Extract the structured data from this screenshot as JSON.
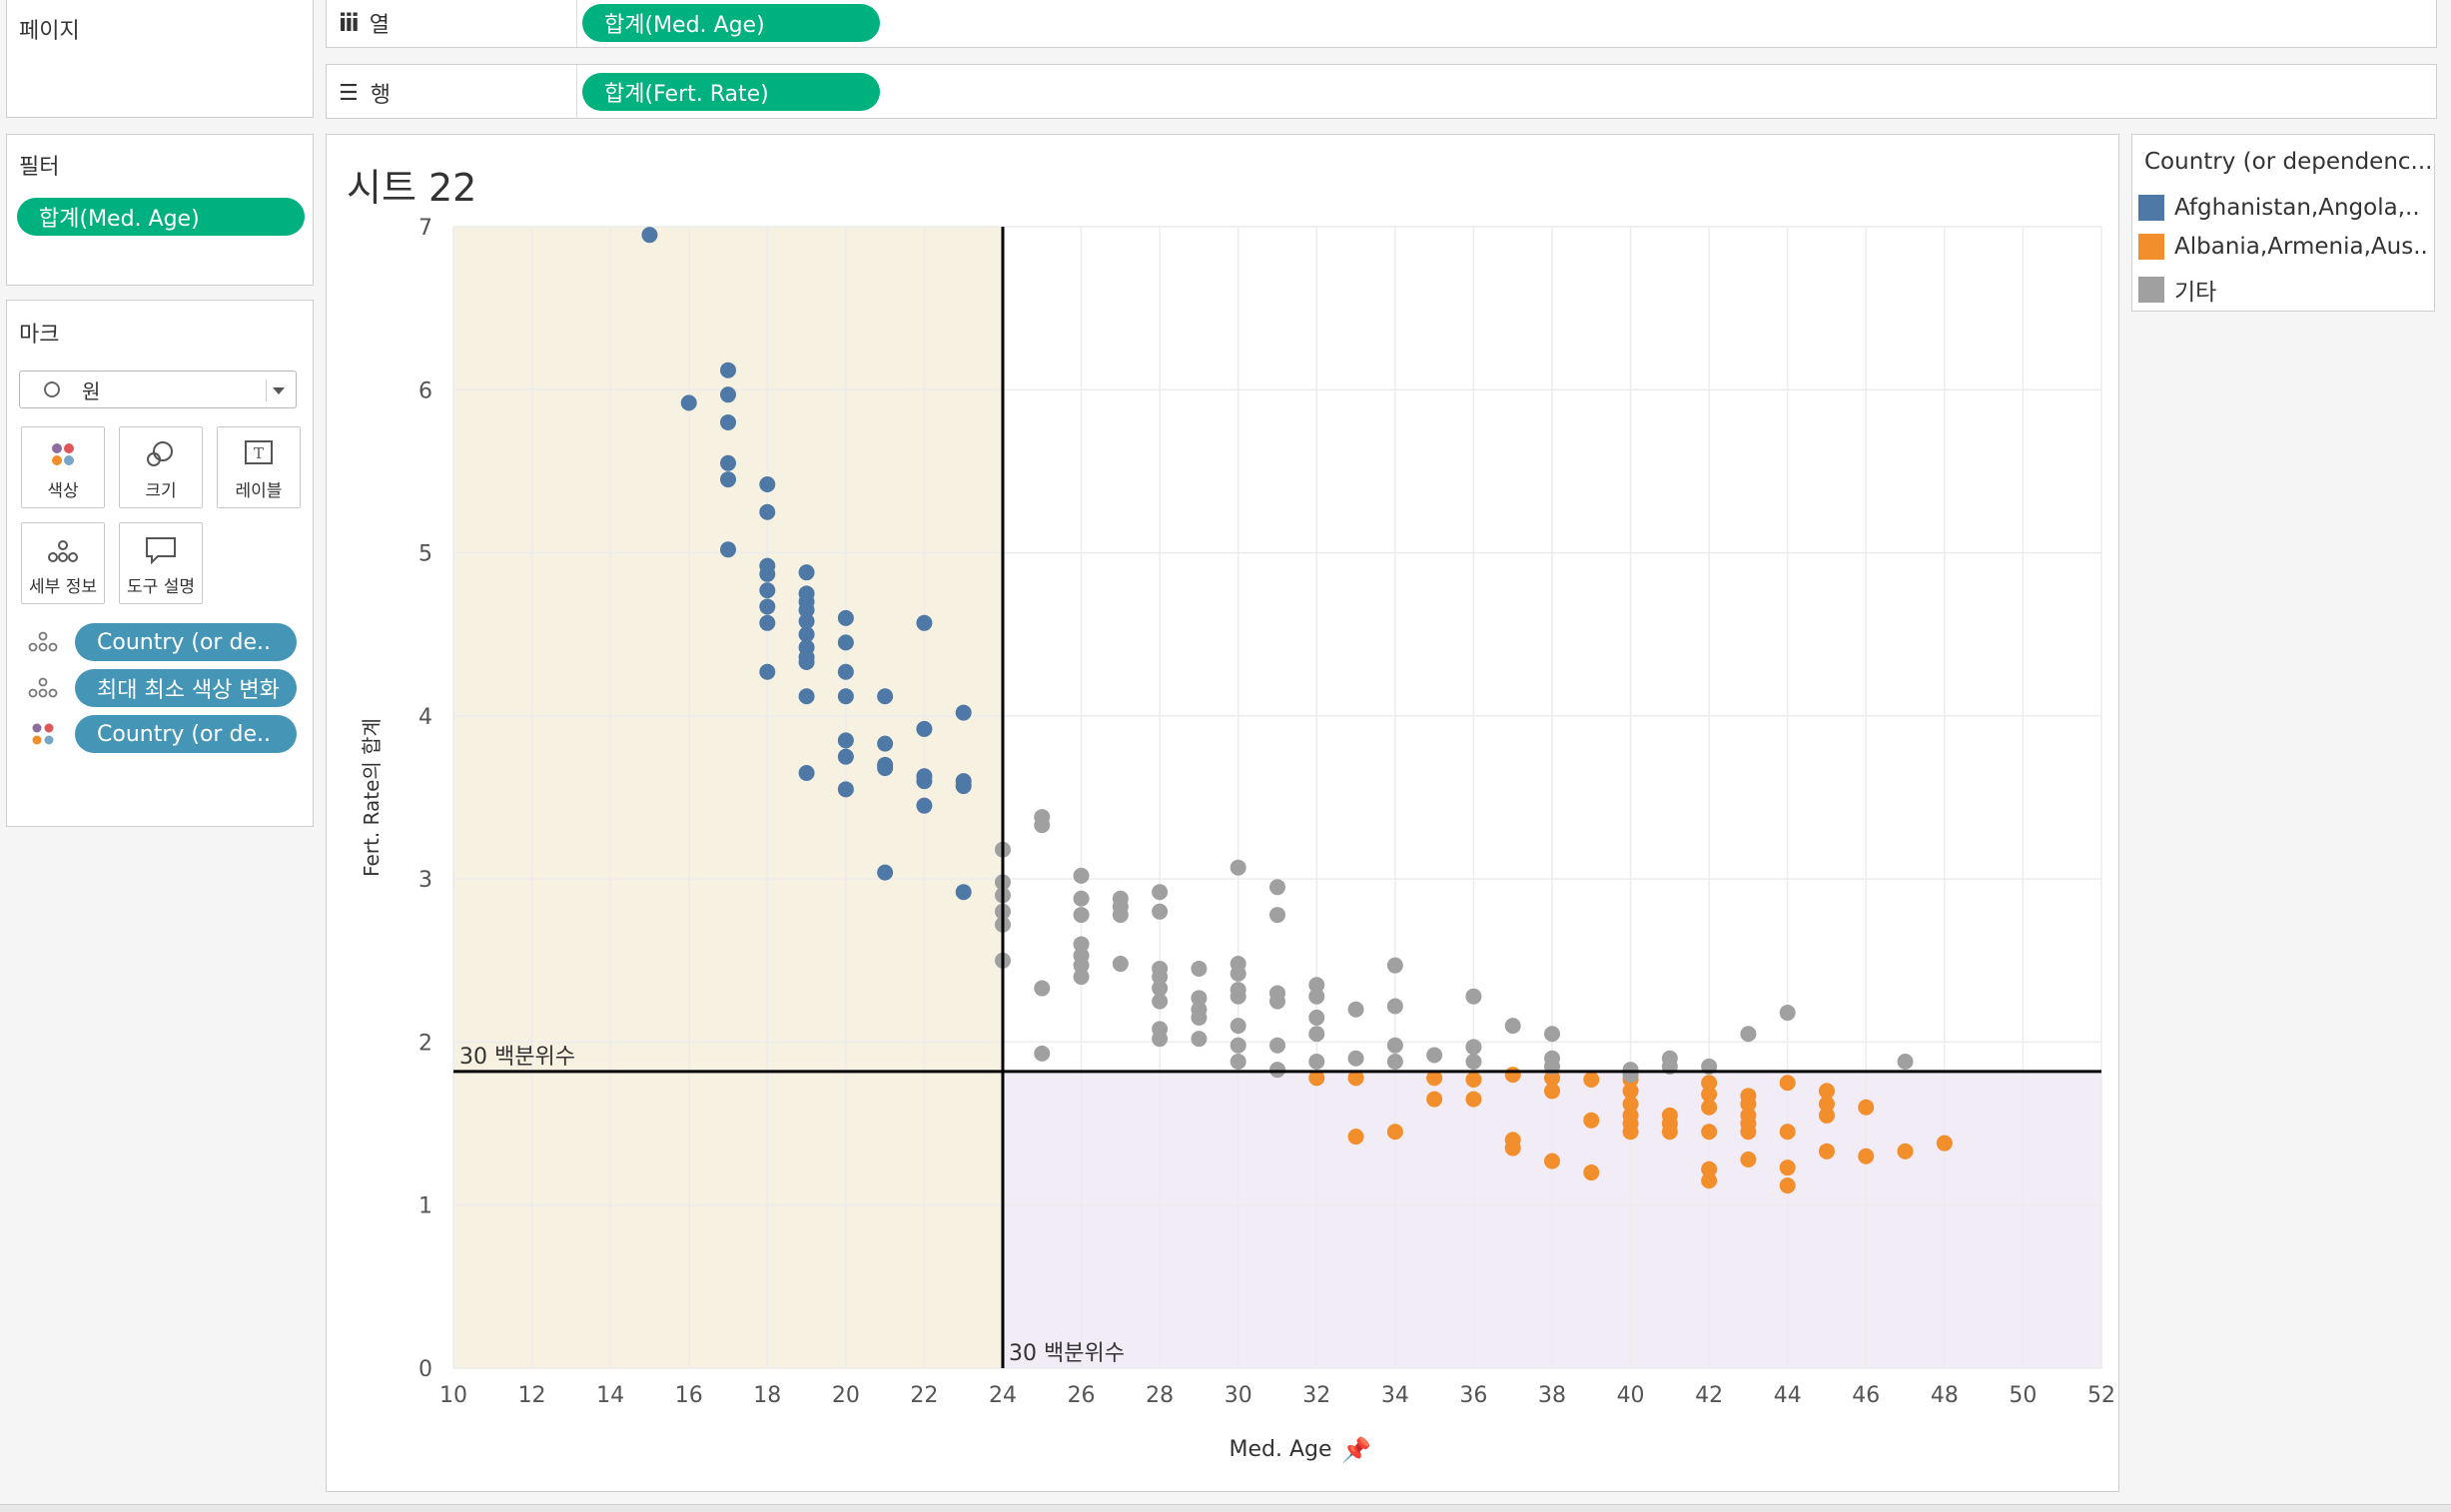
{
  "shelves": {
    "pages_label": "페이지",
    "columns_label": "열",
    "rows_label": "행",
    "columns_pill": "합계(Med. Age)",
    "rows_pill": "합계(Fert. Rate)"
  },
  "filters": {
    "title": "필터",
    "pill": "합계(Med. Age)"
  },
  "marks": {
    "title": "마크",
    "type": "원",
    "buttons": [
      "색상",
      "크기",
      "레이블",
      "세부 정보",
      "도구 설명"
    ],
    "fields": [
      {
        "icon": "detail-icon",
        "label": "Country (or de.."
      },
      {
        "icon": "detail-icon",
        "label": "최대 최소 색상 변화"
      },
      {
        "icon": "color-icon",
        "label": "Country (or de.."
      }
    ]
  },
  "legend": {
    "title": "Country (or dependenc...",
    "items": [
      {
        "label": "Afghanistan,Angola,..",
        "color": "#4e79a7"
      },
      {
        "label": "Albania,Armenia,Aus..",
        "color": "#f28e2b"
      },
      {
        "label": "기타",
        "color": "#a0a0a0"
      }
    ]
  },
  "sheet_title": "시트 22",
  "chart_data": {
    "type": "scatter",
    "xlabel": "Med. Age",
    "ylabel": "Fert. Rate의 합계",
    "xlim": [
      10,
      52
    ],
    "ylim": [
      0,
      7
    ],
    "x_ticks": [
      10,
      12,
      14,
      16,
      18,
      20,
      22,
      24,
      26,
      28,
      30,
      32,
      34,
      36,
      38,
      40,
      42,
      44,
      46,
      48,
      50,
      52
    ],
    "y_ticks": [
      0,
      1,
      2,
      3,
      4,
      5,
      6,
      7
    ],
    "reference_lines": {
      "x": {
        "value": 24,
        "label": "30 백분위수"
      },
      "y": {
        "value": 1.82,
        "label": "30 백분위수"
      }
    },
    "shading": {
      "low_x_color": "#f7f1e1",
      "high_x_low_y_color": "#f1ecf6"
    },
    "series": [
      {
        "name": "Afghanistan,Angola,..",
        "color": "#4e79a7",
        "points": [
          [
            15,
            6.95
          ],
          [
            16,
            5.92
          ],
          [
            17,
            6.12
          ],
          [
            17,
            5.97
          ],
          [
            17,
            5.8
          ],
          [
            17,
            5.55
          ],
          [
            17,
            5.45
          ],
          [
            17,
            5.02
          ],
          [
            18,
            5.42
          ],
          [
            18,
            5.25
          ],
          [
            18,
            4.92
          ],
          [
            18,
            4.87
          ],
          [
            18,
            4.77
          ],
          [
            18,
            4.67
          ],
          [
            18,
            4.57
          ],
          [
            18,
            4.27
          ],
          [
            19,
            4.88
          ],
          [
            19,
            4.75
          ],
          [
            19,
            4.7
          ],
          [
            19,
            4.65
          ],
          [
            19,
            4.58
          ],
          [
            19,
            4.5
          ],
          [
            19,
            4.42
          ],
          [
            19,
            4.36
          ],
          [
            19,
            4.33
          ],
          [
            19,
            4.12
          ],
          [
            19,
            3.65
          ],
          [
            20,
            4.6
          ],
          [
            20,
            4.45
          ],
          [
            20,
            4.27
          ],
          [
            20,
            4.12
          ],
          [
            20,
            3.85
          ],
          [
            20,
            3.75
          ],
          [
            20,
            3.55
          ],
          [
            21,
            4.12
          ],
          [
            21,
            3.83
          ],
          [
            21,
            3.7
          ],
          [
            21,
            3.68
          ],
          [
            21,
            3.04
          ],
          [
            22,
            4.57
          ],
          [
            22,
            3.92
          ],
          [
            22,
            3.63
          ],
          [
            22,
            3.6
          ],
          [
            22,
            3.45
          ],
          [
            23,
            4.02
          ],
          [
            23,
            3.6
          ],
          [
            23,
            3.57
          ],
          [
            23,
            2.92
          ]
        ]
      },
      {
        "name": "Albania,Armenia,Aus..",
        "color": "#f28e2b",
        "points": [
          [
            32,
            1.78
          ],
          [
            33,
            1.78
          ],
          [
            33,
            1.42
          ],
          [
            34,
            1.45
          ],
          [
            35,
            1.78
          ],
          [
            35,
            1.65
          ],
          [
            36,
            1.77
          ],
          [
            36,
            1.65
          ],
          [
            37,
            1.8
          ],
          [
            37,
            1.4
          ],
          [
            37,
            1.35
          ],
          [
            38,
            1.78
          ],
          [
            38,
            1.7
          ],
          [
            38,
            1.27
          ],
          [
            39,
            1.77
          ],
          [
            39,
            1.52
          ],
          [
            39,
            1.2
          ],
          [
            40,
            1.77
          ],
          [
            40,
            1.7
          ],
          [
            40,
            1.62
          ],
          [
            40,
            1.55
          ],
          [
            40,
            1.5
          ],
          [
            40,
            1.45
          ],
          [
            41,
            1.55
          ],
          [
            41,
            1.5
          ],
          [
            41,
            1.45
          ],
          [
            42,
            1.75
          ],
          [
            42,
            1.68
          ],
          [
            42,
            1.6
          ],
          [
            42,
            1.45
          ],
          [
            42,
            1.22
          ],
          [
            42,
            1.15
          ],
          [
            43,
            1.67
          ],
          [
            43,
            1.62
          ],
          [
            43,
            1.55
          ],
          [
            43,
            1.5
          ],
          [
            43,
            1.45
          ],
          [
            43,
            1.28
          ],
          [
            44,
            1.75
          ],
          [
            44,
            1.45
          ],
          [
            44,
            1.23
          ],
          [
            44,
            1.12
          ],
          [
            45,
            1.7
          ],
          [
            45,
            1.62
          ],
          [
            45,
            1.55
          ],
          [
            45,
            1.33
          ],
          [
            46,
            1.6
          ],
          [
            46,
            1.3
          ],
          [
            47,
            1.33
          ],
          [
            48,
            1.38
          ]
        ]
      },
      {
        "name": "기타",
        "color": "#a0a0a0",
        "points": [
          [
            24,
            3.18
          ],
          [
            24,
            2.98
          ],
          [
            24,
            2.9
          ],
          [
            24,
            2.8
          ],
          [
            24,
            2.72
          ],
          [
            24,
            2.5
          ],
          [
            25,
            3.38
          ],
          [
            25,
            3.33
          ],
          [
            25,
            2.33
          ],
          [
            25,
            1.93
          ],
          [
            26,
            3.02
          ],
          [
            26,
            2.88
          ],
          [
            26,
            2.78
          ],
          [
            26,
            2.6
          ],
          [
            26,
            2.53
          ],
          [
            26,
            2.47
          ],
          [
            26,
            2.4
          ],
          [
            27,
            2.88
          ],
          [
            27,
            2.83
          ],
          [
            27,
            2.78
          ],
          [
            27,
            2.48
          ],
          [
            28,
            2.92
          ],
          [
            28,
            2.8
          ],
          [
            28,
            2.45
          ],
          [
            28,
            2.4
          ],
          [
            28,
            2.33
          ],
          [
            28,
            2.25
          ],
          [
            28,
            2.08
          ],
          [
            28,
            2.02
          ],
          [
            29,
            2.45
          ],
          [
            29,
            2.27
          ],
          [
            29,
            2.2
          ],
          [
            29,
            2.15
          ],
          [
            29,
            2.02
          ],
          [
            30,
            3.07
          ],
          [
            30,
            2.48
          ],
          [
            30,
            2.42
          ],
          [
            30,
            2.32
          ],
          [
            30,
            2.28
          ],
          [
            30,
            2.1
          ],
          [
            30,
            1.98
          ],
          [
            30,
            1.88
          ],
          [
            31,
            2.95
          ],
          [
            31,
            2.78
          ],
          [
            31,
            2.3
          ],
          [
            31,
            2.25
          ],
          [
            31,
            1.98
          ],
          [
            31,
            1.83
          ],
          [
            32,
            2.35
          ],
          [
            32,
            2.28
          ],
          [
            32,
            2.15
          ],
          [
            32,
            2.05
          ],
          [
            32,
            1.88
          ],
          [
            33,
            2.2
          ],
          [
            33,
            1.9
          ],
          [
            34,
            2.47
          ],
          [
            34,
            2.22
          ],
          [
            34,
            1.98
          ],
          [
            34,
            1.88
          ],
          [
            35,
            1.92
          ],
          [
            36,
            2.28
          ],
          [
            36,
            1.97
          ],
          [
            36,
            1.88
          ],
          [
            37,
            2.1
          ],
          [
            38,
            2.05
          ],
          [
            38,
            1.9
          ],
          [
            38,
            1.85
          ],
          [
            40,
            1.83
          ],
          [
            40,
            1.8
          ],
          [
            41,
            1.9
          ],
          [
            41,
            1.85
          ],
          [
            42,
            1.85
          ],
          [
            43,
            2.05
          ],
          [
            44,
            2.18
          ],
          [
            47,
            1.88
          ]
        ]
      }
    ]
  }
}
